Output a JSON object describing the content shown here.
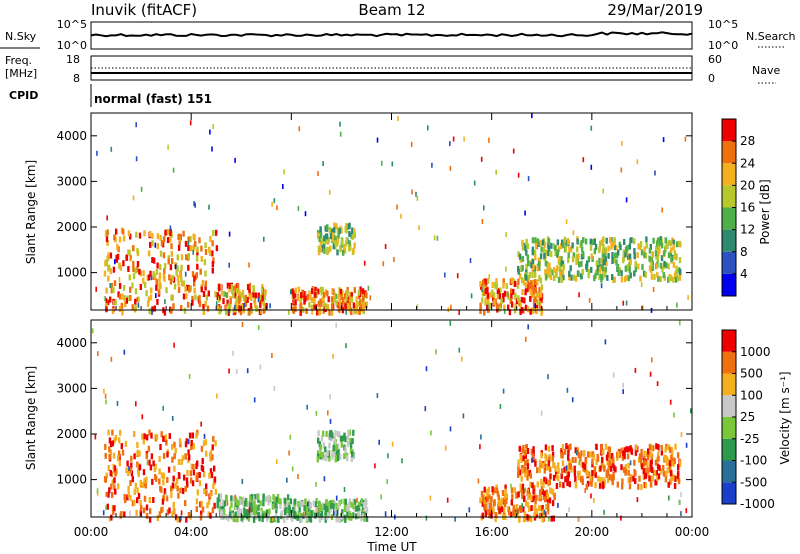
{
  "header": {
    "title": "Inuvik (fitACF)",
    "beam": "Beam 12",
    "date": "29/Mar/2019"
  },
  "params": {
    "nsky_label": "N.Sky",
    "nsky_ticks": [
      "10^5",
      "10^0"
    ],
    "nsearch_label": "N.Search",
    "nsearch_ticks": [
      "10^5",
      "10^0"
    ],
    "freq_label_1": "Freq.",
    "freq_label_2": "[MHz]",
    "freq_ticks": [
      "18",
      "8"
    ],
    "nave_label": "Nave",
    "nave_ticks": [
      "60",
      "0"
    ],
    "cpid_label": "CPID",
    "cpid_value": "normal (fast) 151"
  },
  "chart_data": [
    {
      "type": "heatmap",
      "name": "power",
      "ylabel": "Slant Range [km]",
      "yticks": [
        "1000",
        "2000",
        "3000",
        "4000"
      ],
      "ylim": [
        180,
        4500
      ],
      "xlim": [
        "00:00",
        "24:00"
      ],
      "colorbar_label": "Power [dB]",
      "colorbar_ticks": [
        "4",
        "8",
        "12",
        "16",
        "20",
        "24",
        "28"
      ],
      "colorbar_range": [
        0,
        30
      ],
      "colors": [
        "#0000ee",
        "#2a52c0",
        "#2e8a6e",
        "#4fb04a",
        "#b8c82a",
        "#f5b020",
        "#f07010",
        "#ee0000"
      ],
      "echo_regions": [
        {
          "t0": 0.5,
          "t1": 5.0,
          "r0": 180,
          "r1": 2000,
          "level": "high"
        },
        {
          "t0": 5.0,
          "t1": 7.0,
          "r0": 180,
          "r1": 800,
          "level": "high"
        },
        {
          "t0": 8.0,
          "t1": 11.0,
          "r0": 180,
          "r1": 700,
          "level": "high"
        },
        {
          "t0": 9.0,
          "t1": 10.5,
          "r0": 1500,
          "r1": 2100,
          "level": "mid"
        },
        {
          "t0": 15.5,
          "t1": 18.0,
          "r0": 180,
          "r1": 900,
          "level": "high"
        },
        {
          "t0": 17.0,
          "t1": 23.5,
          "r0": 900,
          "r1": 1800,
          "level": "mid"
        }
      ]
    },
    {
      "type": "heatmap",
      "name": "velocity",
      "ylabel": "Slant Range [km]",
      "yticks": [
        "1000",
        "2000",
        "3000",
        "4000"
      ],
      "ylim": [
        180,
        4500
      ],
      "xlim": [
        "00:00",
        "24:00"
      ],
      "colorbar_label": "Velocity [m s⁻¹]",
      "colorbar_ticks": [
        "1000",
        "500",
        "100",
        "25",
        "-25",
        "-100",
        "-500",
        "-1000"
      ],
      "colors": [
        "#1a3fc8",
        "#2a6e9a",
        "#2e9a4e",
        "#7ac83a",
        "#c8c8c8",
        "#f5b020",
        "#f07010",
        "#ee0000"
      ],
      "echo_regions": [
        {
          "t0": 0.5,
          "t1": 5.0,
          "r0": 180,
          "r1": 2100,
          "level": "neg"
        },
        {
          "t0": 5.0,
          "t1": 8.0,
          "r0": 180,
          "r1": 700,
          "level": "pos"
        },
        {
          "t0": 8.0,
          "t1": 11.0,
          "r0": 180,
          "r1": 600,
          "level": "pos"
        },
        {
          "t0": 9.0,
          "t1": 10.5,
          "r0": 1500,
          "r1": 2100,
          "level": "pos"
        },
        {
          "t0": 15.5,
          "t1": 18.5,
          "r0": 180,
          "r1": 900,
          "level": "neg"
        },
        {
          "t0": 17.0,
          "t1": 23.5,
          "r0": 900,
          "r1": 1800,
          "level": "neg"
        }
      ]
    }
  ],
  "xaxis": {
    "ticks": [
      "00:00",
      "04:00",
      "08:00",
      "12:00",
      "16:00",
      "20:00",
      "00:00"
    ],
    "label": "Time UT"
  }
}
